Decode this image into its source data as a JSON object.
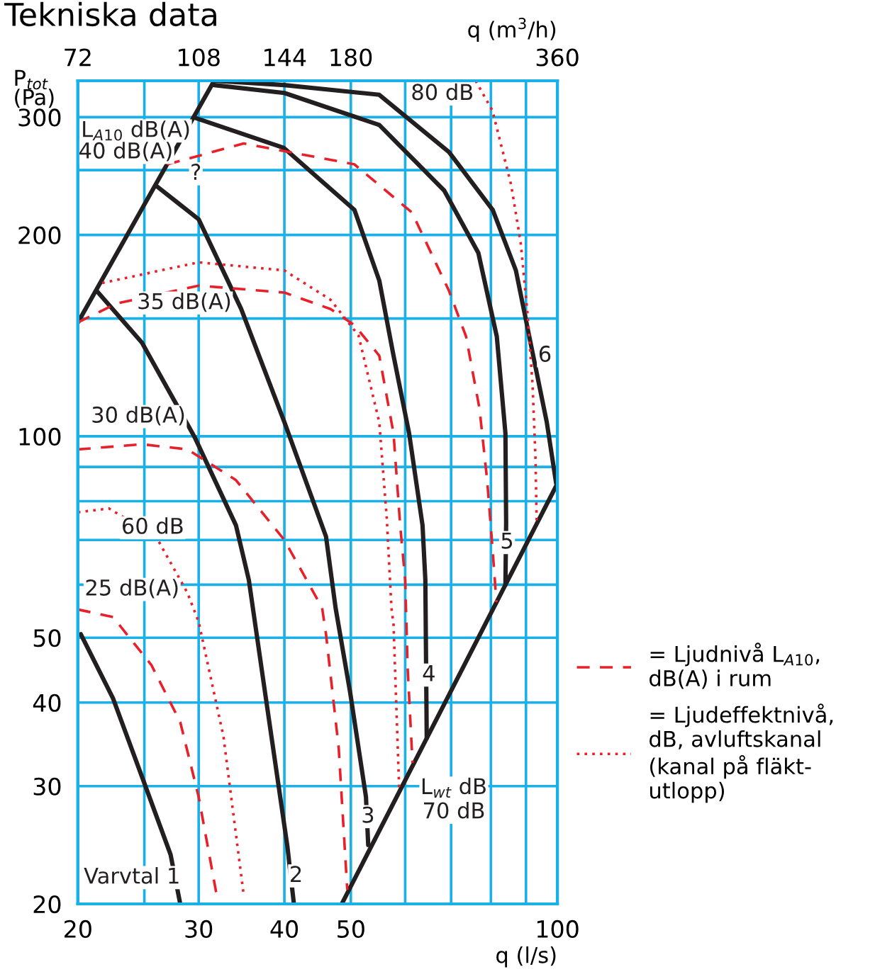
{
  "chart_data": {
    "type": "line",
    "title": "Tekniska data",
    "xlabel": "q (l/s)",
    "ylabel": "P$_{tot}$\n(Pa)",
    "x2label": "q (m$^{3}$/h)",
    "log": "xy",
    "xlim": [
      20,
      100
    ],
    "ylim": [
      20,
      340
    ],
    "xticks": [
      20,
      {
        "value": 25,
        "label": null
      },
      30,
      40,
      50,
      {
        "value": 60,
        "label": null
      },
      {
        "value": 70,
        "label": null
      },
      {
        "value": 80,
        "label": null
      },
      {
        "value": 90,
        "label": null
      },
      100
    ],
    "yticks": [
      20,
      30,
      40,
      50,
      {
        "value": 60,
        "label": null
      },
      {
        "value": 70,
        "label": null
      },
      {
        "value": 80,
        "label": null
      },
      {
        "value": 90,
        "label": null
      },
      100,
      {
        "value": 150,
        "label": null
      },
      200,
      {
        "value": 250,
        "label": null
      },
      300
    ],
    "grid": true,
    "legend": "right",
    "series": [
      {
        "color": "#231f20",
        "line_style": "solid",
        "x": [
          20,
          31.6
        ],
        "values": [
          148,
          340
        ]
      },
      {
        "color": "#231f20",
        "line_style": "solid",
        "x": [
          48.5,
          100
        ],
        "values": [
          20,
          85
        ]
      },
      {
        "color": "#231f20",
        "line_style": "solid",
        "x": [
          20.2,
          22.5,
          25,
          27.3,
          28.2
        ],
        "values": [
          50.6,
          40.6,
          30.3,
          23.7,
          20
        ]
      },
      {
        "color": "#231f20",
        "line_style": "solid",
        "x": [
          21.3,
          24.8,
          29.6,
          34,
          35.5,
          37.5,
          40.4,
          41.3
        ],
        "values": [
          165,
          138,
          99.7,
          73.6,
          61,
          41.3,
          24.4,
          20
        ]
      },
      {
        "color": "#231f20",
        "line_style": "solid",
        "x": [
          26,
          30,
          34.6,
          40,
          46,
          47.5,
          49.9,
          52.6,
          53
        ],
        "values": [
          237,
          211,
          155,
          105,
          70.8,
          55.4,
          41.3,
          28.9,
          24.5
        ]
      },
      {
        "color": "#231f20",
        "line_style": "solid",
        "x": [
          29.7,
          39.9,
          50.6,
          55,
          57.7,
          60.8,
          63.6,
          64.2,
          64.5
        ],
        "values": [
          299,
          270,
          218,
          171,
          132,
          101,
          73.6,
          61,
          35.4
        ]
      },
      {
        "color": "#231f20",
        "line_style": "solid",
        "x": [
          31.6,
          40,
          55,
          68.4,
          76.7,
          81.6,
          84,
          84.2,
          84
        ],
        "values": [
          335,
          326,
          292,
          233,
          188,
          141,
          101,
          74.3,
          60
        ]
      },
      {
        "color": "#231f20",
        "line_style": "solid",
        "x": [
          31.6,
          40,
          55,
          69.5,
          80.5,
          87,
          91,
          96.5,
          99.6
        ],
        "values": [
          340,
          335,
          324,
          266,
          218,
          177,
          141,
          105,
          85
        ]
      },
      {
        "name": "= Ljudnivå L$_{A10}$,\ndB(A) i rum",
        "color": "#e8202a",
        "line_style": "dashed",
        "x": [
          27,
          34.9,
          50.6,
          61.4,
          69.5,
          73.6,
          77,
          79,
          80.5,
          81.5
        ],
        "values": [
          255,
          274,
          255,
          216,
          165,
          141,
          110,
          86,
          67.3,
          56.5
        ]
      },
      {
        "color": "#e8202a",
        "line_style": "dashed",
        "x": [
          20,
          22.8,
          30,
          40,
          46.7,
          50.6,
          55,
          57.7,
          59,
          60,
          60.5,
          61.5
        ],
        "values": [
          148,
          158,
          168,
          164,
          155,
          146.6,
          132,
          101,
          73.6,
          61,
          45,
          32.5
        ]
      },
      {
        "color": "#e8202a",
        "line_style": "dashed",
        "x": [
          20,
          24.8,
          28.9,
          34,
          40,
          45.4,
          46,
          48,
          49.4
        ],
        "values": [
          95.6,
          97.3,
          95.6,
          86,
          70,
          55.4,
          50.6,
          34.2,
          21
        ]
      },
      {
        "color": "#e8202a",
        "line_style": "dashed",
        "x": [
          20,
          22.5,
          25.6,
          28.2,
          30,
          31.9
        ],
        "values": [
          55.1,
          53.7,
          45.5,
          37.4,
          28.9,
          20.5
        ]
      },
      {
        "name": "= Ljudeffektnivå,\ndB, avluftskanal\n(kanal på fläkt-\nutlopp)",
        "color": "#e8202a",
        "line_style": "dotted",
        "x": [
          76,
          80.4,
          85.6,
          88.4,
          90.5,
          92,
          92.9,
          93.3
        ],
        "values": [
          340,
          307,
          238,
          195,
          152,
          119.6,
          93.3,
          74
        ]
      },
      {
        "color": "#e8202a",
        "line_style": "dotted",
        "x": [
          21.7,
          30,
          40,
          46.7,
          51.3,
          55,
          56.4,
          57.3,
          57.7,
          58.8
        ],
        "values": [
          169.5,
          182,
          177,
          160,
          141.5,
          105,
          75.5,
          55.4,
          52.3,
          29.7
        ]
      },
      {
        "color": "#e8202a",
        "line_style": "dotted",
        "x": [
          20,
          22.2,
          26,
          28.9,
          30,
          32.6,
          34.9
        ],
        "values": [
          77,
          78,
          70.8,
          58.3,
          52.8,
          35.6,
          20.6
        ]
      }
    ],
    "annotations": [
      "L$_{A10}$ dB(A)",
      "40 dB(A)",
      "?",
      "35 dB(A)",
      "30 dB(A)",
      "60 dB",
      "25 dB(A)",
      "80 dB",
      "L$_{wt}$ dB\n70 dB",
      "Varvtal 1",
      "2",
      "3",
      "4",
      "5",
      "6",
      "72",
      "108",
      "144",
      "180",
      "360"
    ]
  }
}
